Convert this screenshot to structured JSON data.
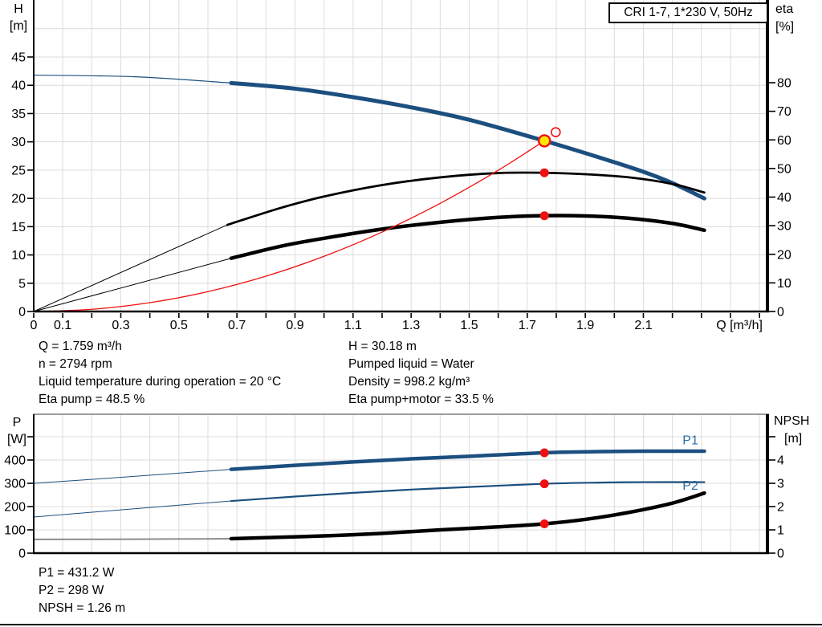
{
  "colors": {
    "curve_blue": "#1c4f7f",
    "label_blue": "#2e6da4",
    "red": "#ee1111",
    "yellow": "#ffe600",
    "grid": "#dcdcdc",
    "gray_border": "#9c9c9c",
    "gray_curve": "#8c8c8c",
    "black": "#000000"
  },
  "title_box": {
    "label": "CRI 1-7, 1*230 V, 50Hz"
  },
  "chart_data": [
    {
      "type": "line",
      "name": "qh-eta-chart",
      "x_axis": {
        "label": "Q [m³/h]",
        "min": 0,
        "max": 2.533,
        "minor_step": 0.1,
        "minor_max": 2.5,
        "tick_labels": [
          [
            0,
            "0"
          ],
          [
            0.1,
            "0.1"
          ],
          [
            0.3,
            "0.3"
          ],
          [
            0.5,
            "0.5"
          ],
          [
            0.7,
            "0.7"
          ],
          [
            0.9,
            "0.9"
          ],
          [
            1.1,
            "1.1"
          ],
          [
            1.3,
            "1.3"
          ],
          [
            1.5,
            "1.5"
          ],
          [
            1.7,
            "1.7"
          ],
          [
            1.9,
            "1.9"
          ],
          [
            2.1,
            "2.1"
          ]
        ]
      },
      "y_left": {
        "title": [
          "H",
          "[m]"
        ],
        "axis": "h",
        "min": 0,
        "max": 55,
        "tick_labels": [
          [
            0,
            "0"
          ],
          [
            5,
            "5"
          ],
          [
            10,
            "10"
          ],
          [
            15,
            "15"
          ],
          [
            20,
            "20"
          ],
          [
            25,
            "25"
          ],
          [
            30,
            "30"
          ],
          [
            35,
            "35"
          ],
          [
            40,
            "40"
          ],
          [
            45,
            "45"
          ]
        ],
        "grid": [
          5,
          10,
          15,
          20,
          25,
          30,
          35,
          40,
          45,
          50
        ]
      },
      "y_right": {
        "title": [
          "eta",
          "[%]"
        ],
        "axis": "eta",
        "min": 0,
        "max": 80,
        "tick_labels": [
          [
            0,
            "0"
          ],
          [
            10,
            "10"
          ],
          [
            20,
            "20"
          ],
          [
            30,
            "30"
          ],
          [
            40,
            "40"
          ],
          [
            50,
            "50"
          ],
          [
            60,
            "60"
          ],
          [
            70,
            "70"
          ],
          [
            80,
            "80"
          ]
        ]
      },
      "curves": [
        {
          "name": "head-curve-thin",
          "axis": "h",
          "color": "curve_blue",
          "width": 1.2,
          "points": [
            [
              0,
              41.8
            ],
            [
              0.35,
              41.5
            ],
            [
              0.68,
              40.4
            ]
          ]
        },
        {
          "name": "head-curve",
          "axis": "h",
          "color": "curve_blue",
          "width": 5,
          "points": [
            [
              0.68,
              40.4
            ],
            [
              0.9,
              39.4
            ],
            [
              1.1,
              37.9
            ],
            [
              1.3,
              36.1
            ],
            [
              1.5,
              33.9
            ],
            [
              1.759,
              30.18
            ],
            [
              1.95,
              27.2
            ],
            [
              2.1,
              24.7
            ],
            [
              2.2,
              22.7
            ],
            [
              2.31,
              20.0
            ]
          ]
        },
        {
          "name": "eta-pump-curve-thin",
          "axis": "eta",
          "color": "black",
          "width": 1,
          "points": [
            [
              0,
              0
            ],
            [
              0.667,
              30.3
            ]
          ]
        },
        {
          "name": "eta-pump-curve",
          "axis": "eta",
          "color": "black",
          "width": 2.8,
          "points": [
            [
              0.667,
              30.3
            ],
            [
              0.85,
              36.2
            ],
            [
              1.0,
              40.2
            ],
            [
              1.2,
              44.2
            ],
            [
              1.4,
              46.9
            ],
            [
              1.6,
              48.4
            ],
            [
              1.759,
              48.5
            ],
            [
              1.9,
              48.0
            ],
            [
              2.05,
              46.9
            ],
            [
              2.2,
              44.6
            ],
            [
              2.31,
              41.6
            ]
          ]
        },
        {
          "name": "eta-pump-motor-curve-thin",
          "axis": "eta",
          "color": "black",
          "width": 1,
          "points": [
            [
              0,
              0
            ],
            [
              0.68,
              18.6
            ]
          ]
        },
        {
          "name": "eta-pump-motor-curve",
          "axis": "eta",
          "color": "black",
          "width": 4.5,
          "points": [
            [
              0.68,
              18.6
            ],
            [
              0.85,
              22.8
            ],
            [
              1.0,
              25.6
            ],
            [
              1.2,
              28.8
            ],
            [
              1.4,
              31.2
            ],
            [
              1.6,
              32.9
            ],
            [
              1.759,
              33.5
            ],
            [
              1.9,
              33.4
            ],
            [
              2.05,
              32.6
            ],
            [
              2.2,
              30.8
            ],
            [
              2.31,
              28.4
            ]
          ]
        },
        {
          "name": "system-curve",
          "axis": "h",
          "color": "red",
          "width": 1.3,
          "points": [
            [
              0,
              0
            ],
            [
              0.2,
              0.39
            ],
            [
              0.4,
              1.56
            ],
            [
              0.6,
              3.51
            ],
            [
              0.8,
              6.24
            ],
            [
              1.0,
              9.76
            ],
            [
              1.2,
              14.05
            ],
            [
              1.4,
              19.12
            ],
            [
              1.6,
              24.97
            ],
            [
              1.759,
              30.18
            ]
          ]
        }
      ],
      "markers": [
        {
          "kind": "open",
          "axis": "h",
          "q": 1.798,
          "value": 31.7
        },
        {
          "kind": "duty",
          "axis": "h",
          "q": 1.759,
          "value": 30.18
        },
        {
          "kind": "dot",
          "axis": "eta",
          "q": 1.759,
          "value": 48.5
        },
        {
          "kind": "dot",
          "axis": "eta",
          "q": 1.759,
          "value": 33.5
        }
      ],
      "curve_labels": []
    },
    {
      "type": "line",
      "name": "power-npsh-chart",
      "x_axis": {
        "label": "",
        "min": 0,
        "max": 2.533,
        "minor_step": 0.1,
        "minor_max": 2.5,
        "tick_labels": []
      },
      "y_left": {
        "title": [
          "P",
          "[W]"
        ],
        "axis": "p",
        "min": 0,
        "max": 596,
        "tick_labels": [
          [
            0,
            "0"
          ],
          [
            100,
            "100"
          ],
          [
            200,
            "200"
          ],
          [
            300,
            "300"
          ],
          [
            400,
            "400"
          ],
          [
            500,
            ""
          ]
        ],
        "grid": [
          100,
          200,
          300,
          400,
          500
        ]
      },
      "y_right": {
        "title": [
          "NPSH",
          "[m]"
        ],
        "axis": "npsh",
        "min": 0,
        "max": 5.96,
        "tick_labels": [
          [
            0,
            "0"
          ],
          [
            1,
            "1"
          ],
          [
            2,
            "2"
          ],
          [
            3,
            "3"
          ],
          [
            4,
            "4"
          ],
          [
            5,
            ""
          ]
        ]
      },
      "curves": [
        {
          "name": "p1-curve-thin",
          "axis": "p",
          "color": "curve_blue",
          "width": 1,
          "points": [
            [
              0,
              300
            ],
            [
              0.35,
              330
            ],
            [
              0.68,
              360
            ]
          ]
        },
        {
          "name": "p1-curve",
          "axis": "p",
          "color": "curve_blue",
          "width": 4.5,
          "points": [
            [
              0.68,
              360
            ],
            [
              0.9,
              377
            ],
            [
              1.1,
              392
            ],
            [
              1.3,
              405
            ],
            [
              1.5,
              416
            ],
            [
              1.759,
              431.2
            ],
            [
              1.95,
              436
            ],
            [
              2.1,
              438
            ],
            [
              2.31,
              438
            ]
          ]
        },
        {
          "name": "p2-curve-thin",
          "axis": "p",
          "color": "curve_blue",
          "width": 1,
          "points": [
            [
              0,
              155
            ],
            [
              0.35,
              191
            ],
            [
              0.68,
              224
            ]
          ]
        },
        {
          "name": "p2-curve",
          "axis": "p",
          "color": "curve_blue",
          "width": 2.2,
          "points": [
            [
              0.68,
              224
            ],
            [
              0.9,
              243
            ],
            [
              1.1,
              259
            ],
            [
              1.3,
              273
            ],
            [
              1.5,
              284
            ],
            [
              1.759,
              298
            ],
            [
              1.95,
              303
            ],
            [
              2.1,
              305
            ],
            [
              2.31,
              305
            ]
          ]
        },
        {
          "name": "npsh-curve-thin",
          "axis": "npsh",
          "color": "gray_curve",
          "width": 2,
          "points": [
            [
              0,
              0.59
            ],
            [
              0.35,
              0.6
            ],
            [
              0.68,
              0.62
            ]
          ]
        },
        {
          "name": "npsh-curve",
          "axis": "npsh",
          "color": "black",
          "width": 4.5,
          "points": [
            [
              0.68,
              0.62
            ],
            [
              1.0,
              0.74
            ],
            [
              1.2,
              0.85
            ],
            [
              1.4,
              1.0
            ],
            [
              1.6,
              1.13
            ],
            [
              1.759,
              1.26
            ],
            [
              1.9,
              1.45
            ],
            [
              2.05,
              1.75
            ],
            [
              2.2,
              2.15
            ],
            [
              2.31,
              2.58
            ]
          ]
        }
      ],
      "markers": [
        {
          "kind": "dot",
          "axis": "p",
          "q": 1.759,
          "value": 431.2
        },
        {
          "kind": "dot",
          "axis": "p",
          "q": 1.759,
          "value": 298
        },
        {
          "kind": "dot",
          "axis": "npsh",
          "q": 1.759,
          "value": 1.26
        }
      ],
      "curve_labels": [
        {
          "text": "P1",
          "q": 2.235,
          "axis": "p",
          "value": 468
        },
        {
          "text": "P2",
          "q": 2.235,
          "axis": "p",
          "value": 272
        }
      ]
    }
  ],
  "axis_titles": {
    "h": "H",
    "h_unit": "[m]",
    "eta": "eta",
    "eta_unit": "[%]",
    "p": "P",
    "p_unit": "[W]",
    "npsh": "NPSH",
    "npsh_unit": "[m]"
  },
  "annotations": {
    "left": [
      "Q = 1.759 m³/h",
      "n = 2794 rpm",
      "Liquid temperature during operation = 20 °C",
      "Eta pump = 48.5 %"
    ],
    "right": [
      "H = 30.18 m",
      "Pumped liquid = Water",
      "Density = 998.2 kg/m³",
      "Eta pump+motor = 33.5 %"
    ]
  },
  "results": [
    "P1 = 431.2 W",
    "P2 = 298 W",
    "NPSH = 1.26 m"
  ]
}
